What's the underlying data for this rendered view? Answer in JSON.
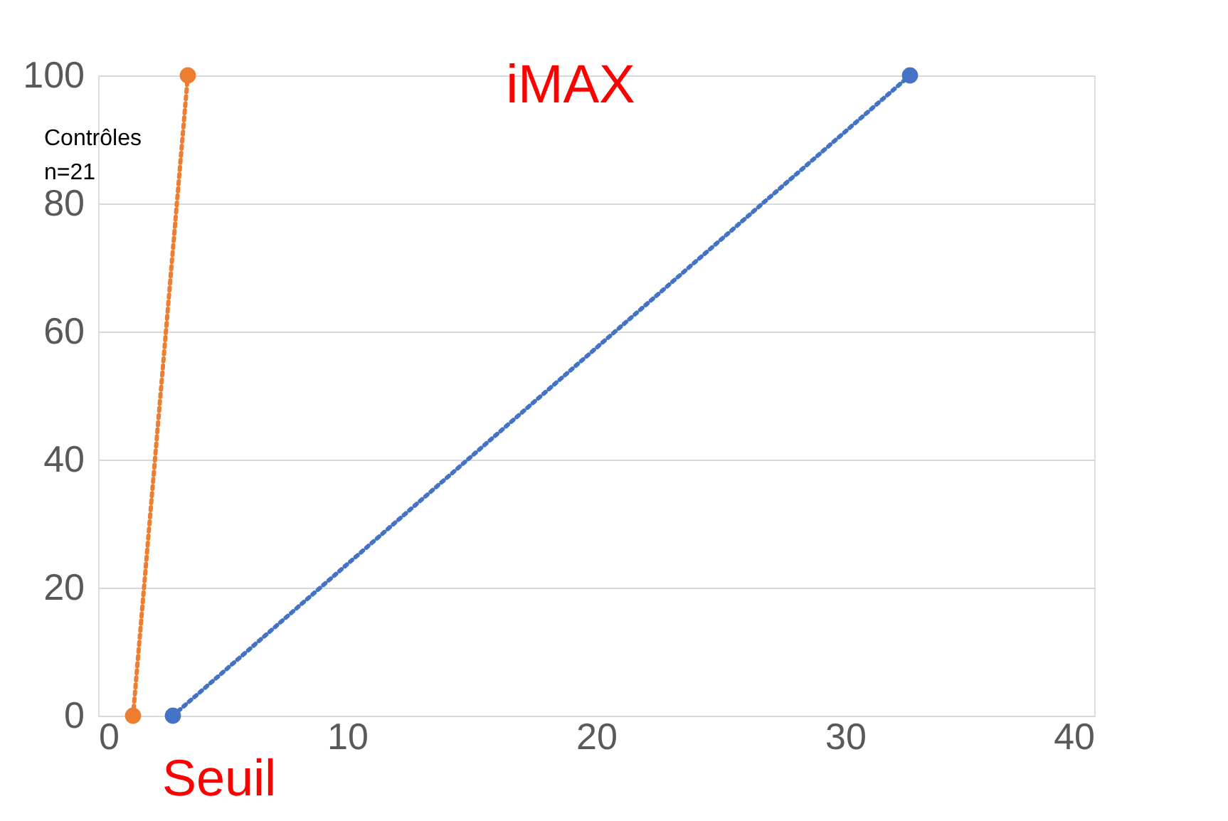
{
  "chart_data": {
    "type": "line",
    "title": "iMAX",
    "series": [
      {
        "color": "#ed7d31",
        "x": [
          1.4,
          3.6
        ],
        "values": [
          0,
          100
        ]
      },
      {
        "color": "#4472c4",
        "x": [
          3.0,
          32.6
        ],
        "values": [
          0,
          100
        ]
      }
    ],
    "xlim": [
      0,
      40
    ],
    "xticks": [
      0,
      10,
      20,
      30,
      40
    ],
    "ylim": [
      0,
      100
    ],
    "yticks": [
      0,
      20,
      40,
      60,
      80,
      100
    ],
    "grid": "y",
    "marker": "circle",
    "line_style": "dotted",
    "annotations": [
      "Contrôles\nn=21",
      "Seuil"
    ]
  }
}
